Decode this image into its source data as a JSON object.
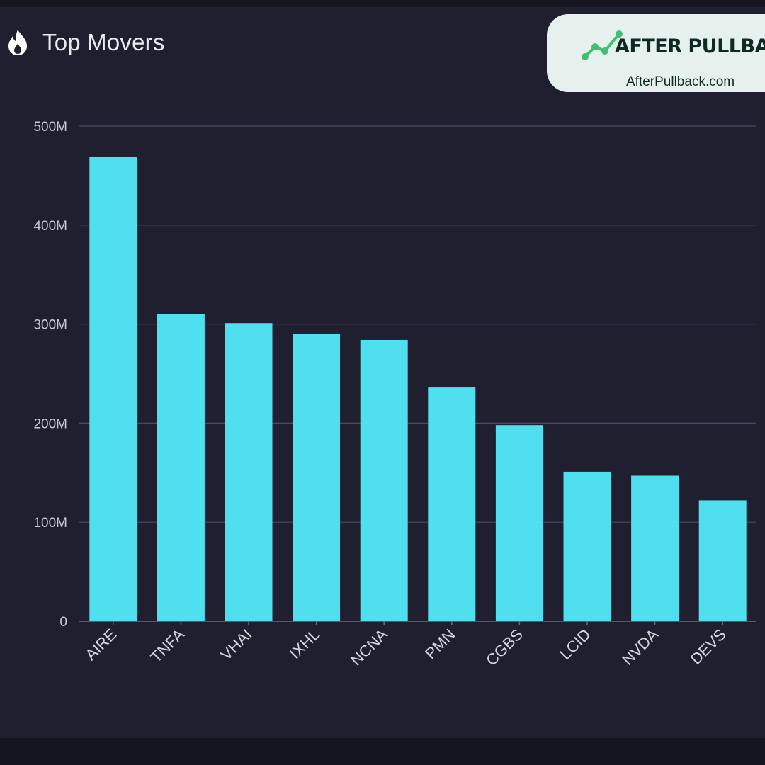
{
  "header": {
    "title": "Top Movers",
    "icon": "flame-icon"
  },
  "brand": {
    "name": "AFTER PULLBACK",
    "url": "AfterPullback.com",
    "logo_icon": "trend-line-icon",
    "logo_color": "#3fbf6f"
  },
  "colors": {
    "background": "#1f1f30",
    "bar": "#4fdfef",
    "grid": "#4a4a60",
    "text": "#e9e9ef"
  },
  "chart_data": {
    "type": "bar",
    "title": "Top Movers",
    "categories": [
      "AIRE",
      "TNFA",
      "VHAI",
      "IXHL",
      "NCNA",
      "PMN",
      "CGBS",
      "LCID",
      "NVDA",
      "DEVS"
    ],
    "values": [
      469000000,
      310000000,
      301000000,
      290000000,
      284000000,
      236000000,
      198000000,
      151000000,
      147000000,
      122000000
    ],
    "yticks": [
      "0",
      "100M",
      "200M",
      "300M",
      "400M",
      "500M"
    ],
    "ylim": [
      0,
      500000000
    ],
    "xlabel": "",
    "ylabel": "",
    "grid": true,
    "legend": "none"
  }
}
